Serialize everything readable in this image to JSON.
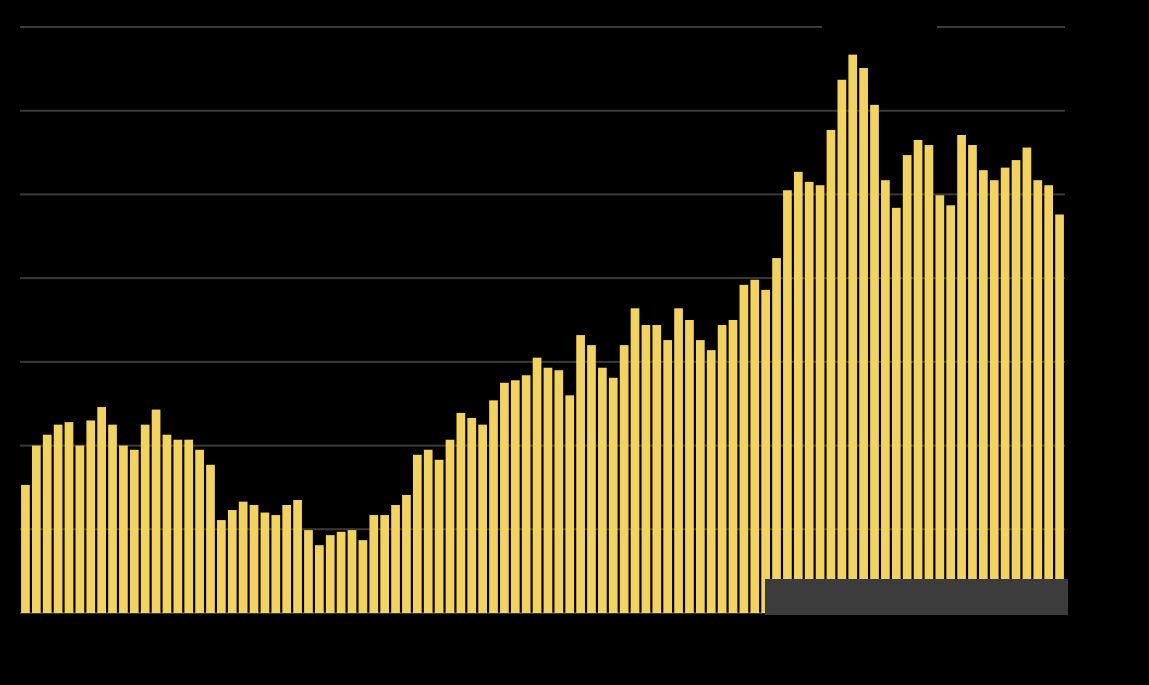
{
  "chart_data": {
    "type": "bar",
    "values": [
      15.3,
      20,
      21.3,
      22.5,
      22.8,
      20,
      23,
      24.6,
      22.5,
      20,
      19.5,
      22.5,
      24.3,
      21.3,
      20.7,
      20.7,
      19.5,
      17.7,
      11.1,
      12.3,
      13.3,
      12.9,
      12,
      11.7,
      12.9,
      13.5,
      9.9,
      8.1,
      9.3,
      9.7,
      9.9,
      8.7,
      11.7,
      11.7,
      12.9,
      14.1,
      18.9,
      19.5,
      18.3,
      20.7,
      23.9,
      23.3,
      22.5,
      25.4,
      27.5,
      27.8,
      28.4,
      30.5,
      29.3,
      29,
      26,
      33.2,
      32,
      29.3,
      28.1,
      32,
      36.4,
      34.4,
      34.4,
      32.6,
      36.4,
      35,
      32.6,
      31.4,
      34.4,
      35,
      39.2,
      39.8,
      38.6,
      42.4,
      50.5,
      52.7,
      51.5,
      51.1,
      57.7,
      63.7,
      66.7,
      65.1,
      60.7,
      51.7,
      48.4,
      54.7,
      56.5,
      55.9,
      49.9,
      48.7,
      57.1,
      55.9,
      52.9,
      51.7,
      53.2,
      54.1,
      55.6,
      51.7,
      51.1,
      47.6
    ],
    "color": "#f2d35e",
    "ylim": [
      0,
      70
    ],
    "yticks": [
      0,
      10,
      20,
      30,
      40,
      50,
      60,
      70
    ],
    "grid": true
  }
}
